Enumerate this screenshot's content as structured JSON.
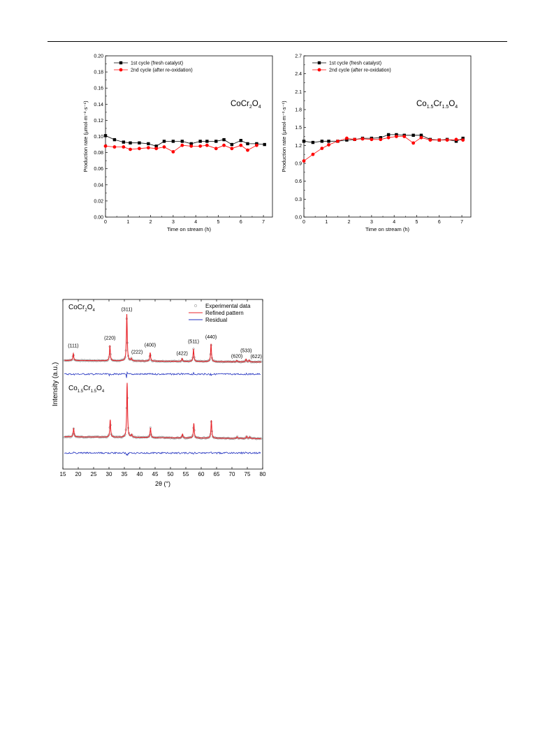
{
  "charts": [
    {
      "id": "left",
      "type": "line",
      "title": "",
      "annotation_main": "CoCr",
      "annotation_parts": [
        [
          "CoCr",
          ""
        ],
        [
          "2",
          "sub"
        ],
        [
          "O",
          ""
        ],
        [
          "4",
          "sub"
        ]
      ],
      "xlabel": "Time on stream (h)",
      "ylabel": "Production rate (μmol·m⁻²·s⁻¹)",
      "xlim": [
        0,
        7.4
      ],
      "ylim": [
        0,
        0.2
      ],
      "xticks": [
        0,
        1,
        2,
        3,
        4,
        5,
        6,
        7
      ],
      "yticks": [
        0.0,
        0.02,
        0.04,
        0.06,
        0.08,
        0.1,
        0.12,
        0.14,
        0.16,
        0.18,
        0.2
      ],
      "ytick_labels": [
        "0.00",
        "0.02",
        "0.04",
        "0.06",
        "0.08",
        "0.10",
        "0.12",
        "0.14",
        "0.16",
        "0.18",
        "0.20"
      ],
      "legend_position": "top-left",
      "series": [
        {
          "name": "1st cycle (fresh catalyst)",
          "color": "#000000",
          "marker": "square",
          "x": [
            0,
            0.4,
            0.8,
            1.1,
            1.5,
            1.9,
            2.25,
            2.6,
            3.0,
            3.4,
            3.8,
            4.2,
            4.5,
            4.9,
            5.25,
            5.6,
            6.0,
            6.3,
            6.7,
            7.05
          ],
          "y": [
            0.101,
            0.096,
            0.093,
            0.092,
            0.092,
            0.091,
            0.088,
            0.094,
            0.094,
            0.094,
            0.091,
            0.094,
            0.094,
            0.094,
            0.096,
            0.09,
            0.095,
            0.091,
            0.091,
            0.09
          ]
        },
        {
          "name": "2nd cycle (after re-oxidation)",
          "color": "#ff0000",
          "marker": "circle",
          "x": [
            0,
            0.4,
            0.8,
            1.1,
            1.5,
            1.9,
            2.25,
            2.6,
            3.0,
            3.4,
            3.8,
            4.2,
            4.5,
            4.9,
            5.25,
            5.6,
            6.0,
            6.3,
            6.7
          ],
          "y": [
            0.088,
            0.087,
            0.087,
            0.084,
            0.085,
            0.086,
            0.085,
            0.087,
            0.081,
            0.089,
            0.088,
            0.088,
            0.089,
            0.085,
            0.089,
            0.085,
            0.089,
            0.083,
            0.089
          ]
        }
      ]
    },
    {
      "id": "right",
      "type": "line",
      "title": "",
      "annotation_main": "Co",
      "annotation_parts": [
        [
          "Co",
          ""
        ],
        [
          "1.5",
          "sub"
        ],
        [
          "Cr",
          ""
        ],
        [
          "1.5",
          "sub"
        ],
        [
          "O",
          ""
        ],
        [
          "4",
          "sub"
        ]
      ],
      "xlabel": "Time on stream (h)",
      "ylabel": "Production rate (μmol·m⁻²·s⁻¹)",
      "xlim": [
        0,
        7.4
      ],
      "ylim": [
        0,
        2.7
      ],
      "xticks": [
        0,
        1,
        2,
        3,
        4,
        5,
        6,
        7
      ],
      "yticks": [
        0.0,
        0.3,
        0.6,
        0.9,
        1.2,
        1.5,
        1.8,
        2.1,
        2.4,
        2.7
      ],
      "ytick_labels": [
        "0.0",
        "0.3",
        "0.6",
        "0.9",
        "1.2",
        "1.5",
        "1.8",
        "2.1",
        "2.4",
        "2.7"
      ],
      "legend_position": "top-left",
      "series": [
        {
          "name": "1st cycle (fresh catalyst)",
          "color": "#000000",
          "marker": "square",
          "x": [
            0,
            0.4,
            0.8,
            1.1,
            1.5,
            1.9,
            2.25,
            2.6,
            3.0,
            3.4,
            3.75,
            4.1,
            4.45,
            4.85,
            5.2,
            5.6,
            6.0,
            6.35,
            6.75,
            7.05
          ],
          "y": [
            1.27,
            1.25,
            1.27,
            1.27,
            1.27,
            1.29,
            1.3,
            1.32,
            1.32,
            1.33,
            1.38,
            1.38,
            1.37,
            1.37,
            1.37,
            1.3,
            1.29,
            1.3,
            1.27,
            1.32
          ]
        },
        {
          "name": "2nd cycle (after re-oxidation)",
          "color": "#ff0000",
          "marker": "circle",
          "x": [
            0,
            0.4,
            0.8,
            1.1,
            1.5,
            1.9,
            2.25,
            2.6,
            3.0,
            3.4,
            3.75,
            4.1,
            4.45,
            4.85,
            5.2,
            5.6,
            6.0,
            6.35,
            6.75,
            7.05
          ],
          "y": [
            0.94,
            1.05,
            1.15,
            1.21,
            1.27,
            1.32,
            1.3,
            1.31,
            1.3,
            1.3,
            1.33,
            1.35,
            1.35,
            1.24,
            1.33,
            1.29,
            1.29,
            1.29,
            1.3,
            1.29
          ]
        }
      ]
    },
    {
      "id": "xrd",
      "type": "line",
      "title": "",
      "xlabel": "2θ (°)",
      "ylabel": "Intensity (a.u.)",
      "xlim": [
        15,
        80
      ],
      "xticks": [
        15,
        20,
        25,
        30,
        35,
        40,
        45,
        50,
        55,
        60,
        65,
        70,
        75,
        80
      ],
      "legend_position": "top-right",
      "legend": [
        {
          "name": "Experimental data",
          "color": "#9a9a9a",
          "marker": "open-circle"
        },
        {
          "name": "Refined pattern",
          "color": "#e8252b",
          "marker": "line"
        },
        {
          "name": "Residual",
          "color": "#1f2fbf",
          "marker": "line"
        }
      ],
      "samples": [
        {
          "label_parts": [
            [
              "CoCr",
              ""
            ],
            [
              "2",
              "sub"
            ],
            [
              "O",
              ""
            ],
            [
              "4",
              "sub"
            ]
          ],
          "baseline": 1.0,
          "peaks": [
            {
              "hkl": "(111)",
              "x": 18.4,
              "h": 0.15
            },
            {
              "hkl": "(220)",
              "x": 30.3,
              "h": 0.33
            },
            {
              "hkl": "(311)",
              "x": 35.8,
              "h": 1.0
            },
            {
              "hkl": "(222)",
              "x": 37.3,
              "h": 0.05
            },
            {
              "hkl": "(400)",
              "x": 43.4,
              "h": 0.18
            },
            {
              "hkl": "(422)",
              "x": 53.8,
              "h": 0.06
            },
            {
              "hkl": "(511)",
              "x": 57.5,
              "h": 0.27
            },
            {
              "hkl": "(440)",
              "x": 63.2,
              "h": 0.38
            },
            {
              "hkl": "(620)",
              "x": 71.6,
              "h": 0.03
            },
            {
              "hkl": "(533)",
              "x": 74.6,
              "h": 0.06
            },
            {
              "hkl": "(622)",
              "x": 75.6,
              "h": 0.04
            }
          ]
        },
        {
          "label_parts": [
            [
              "Co",
              ""
            ],
            [
              "1.5",
              "sub"
            ],
            [
              "Cr",
              ""
            ],
            [
              "1.5",
              "sub"
            ],
            [
              "O",
              ""
            ],
            [
              "4",
              "sub"
            ]
          ],
          "baseline": 1.0,
          "peaks": [
            {
              "hkl": "(111)",
              "x": 18.5,
              "h": 0.16
            },
            {
              "hkl": "(220)",
              "x": 30.4,
              "h": 0.32
            },
            {
              "hkl": "(311)",
              "x": 35.9,
              "h": 1.0
            },
            {
              "hkl": "(222)",
              "x": 37.4,
              "h": 0.05
            },
            {
              "hkl": "(400)",
              "x": 43.5,
              "h": 0.18
            },
            {
              "hkl": "(422)",
              "x": 53.9,
              "h": 0.07
            },
            {
              "hkl": "(511)",
              "x": 57.6,
              "h": 0.27
            },
            {
              "hkl": "(440)",
              "x": 63.3,
              "h": 0.33
            },
            {
              "hkl": "(620)",
              "x": 71.7,
              "h": 0.03
            },
            {
              "hkl": "(533)",
              "x": 74.8,
              "h": 0.04
            },
            {
              "hkl": "(622)",
              "x": 75.8,
              "h": 0.03
            }
          ]
        }
      ]
    }
  ]
}
